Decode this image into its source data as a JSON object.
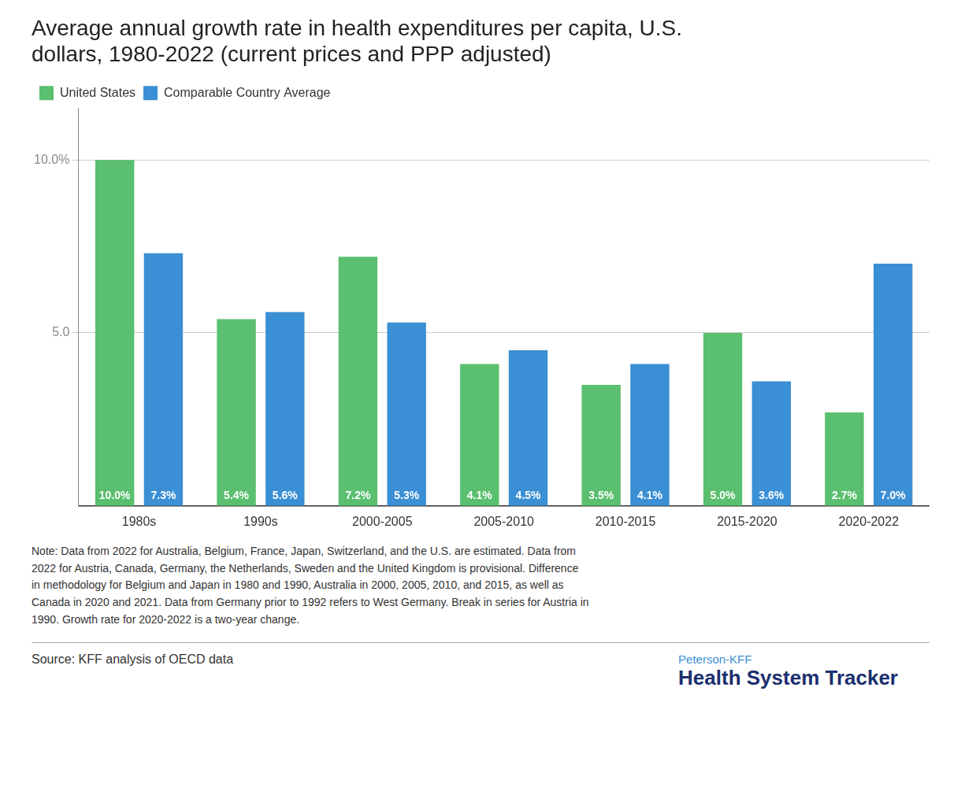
{
  "chart_data": {
    "type": "bar",
    "title": [
      "Average annual growth rate in health expenditures per capita, U.S.",
      "dollars, 1980-2022 (current prices and PPP adjusted)"
    ],
    "categories": [
      "1980s",
      "1990s",
      "2000-2005",
      "2005-2010",
      "2010-2015",
      "2015-2020",
      "2020-2022"
    ],
    "series": [
      {
        "name": "United States",
        "color": "#5abf6e",
        "values": [
          10.0,
          5.4,
          7.2,
          4.1,
          3.5,
          5.0,
          2.7
        ],
        "value_labels": [
          "10.0%",
          "5.4%",
          "7.2%",
          "4.1%",
          "3.5%",
          "5.0%",
          "2.7%"
        ]
      },
      {
        "name": "Comparable Country Average",
        "color": "#3b8fd4",
        "values": [
          7.3,
          5.6,
          5.3,
          4.5,
          4.1,
          3.6,
          7.0
        ],
        "value_labels": [
          "7.3%",
          "5.6%",
          "5.3%",
          "4.5%",
          "4.1%",
          "3.6%",
          "7.0%"
        ]
      }
    ],
    "ylim": [
      0,
      11.5
    ],
    "yticks": [
      {
        "value": 5.0,
        "label": "5.0"
      },
      {
        "value": 10.0,
        "label": "10.0%"
      }
    ],
    "grid": true,
    "legend": "upper left",
    "data_labels": true,
    "note": "Note: Data from 2022 for Australia, Belgium, France, Japan, Switzerland, and the U.S. are estimated. Data from\n2022 for Austria, Canada, Germany, the Netherlands, Sweden and the United Kingdom is provisional. Difference\nin methodology for Belgium and Japan in 1980 and 1990, Australia in 2000, 2005, 2010, and 2015, as well as\nCanada in 2020 and 2021. Data from Germany prior to 1992 refers to West Germany. Break in series for Austria in\n1990. Growth rate for 2020-2022 is a two-year change.",
    "source": "Source: KFF analysis of OECD data",
    "annotations": [
      {
        "text": "Peterson-KFF",
        "color": "#3b8fd4"
      },
      {
        "text": "Health System Tracker",
        "color": "#1a2f6e"
      }
    ]
  }
}
